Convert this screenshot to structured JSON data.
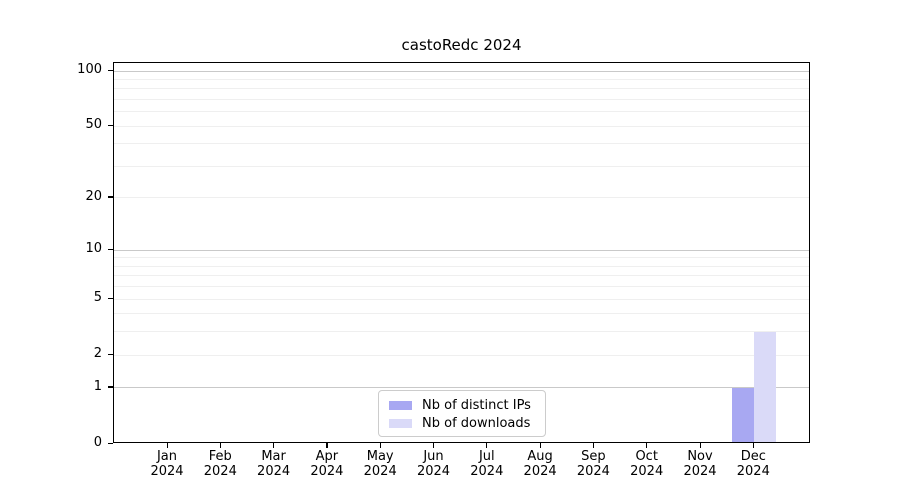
{
  "chart_data": {
    "type": "bar",
    "title": "castoRedc 2024",
    "months": [
      "Jan",
      "Feb",
      "Mar",
      "Apr",
      "May",
      "Jun",
      "Jul",
      "Aug",
      "Sep",
      "Oct",
      "Nov",
      "Dec"
    ],
    "year": "2024",
    "series": [
      {
        "name": "Nb of distinct IPs",
        "color": "#a8a8f2",
        "values": [
          0,
          0,
          0,
          0,
          0,
          0,
          0,
          0,
          0,
          0,
          0,
          1
        ]
      },
      {
        "name": "Nb of downloads",
        "color": "#dadaf8",
        "values": [
          0,
          0,
          0,
          0,
          0,
          0,
          0,
          0,
          0,
          0,
          0,
          3
        ]
      }
    ],
    "y_axis": {
      "scale": "log10(1+v)",
      "labeled_ticks": [
        0,
        1,
        2,
        5,
        10,
        20,
        50,
        100
      ],
      "major_grid_values": [
        1,
        10,
        100
      ],
      "minor_grid_values": [
        2,
        3,
        4,
        5,
        6,
        7,
        8,
        9,
        20,
        30,
        40,
        50,
        60,
        70,
        80,
        90
      ],
      "ymax": 110.6
    },
    "legend_position": "lower center",
    "grid": true,
    "colors": {
      "frame": "#000000",
      "major_grid": "#c9c9c9",
      "minor_grid": "#efefef",
      "legend_border": "#cccccc"
    }
  }
}
